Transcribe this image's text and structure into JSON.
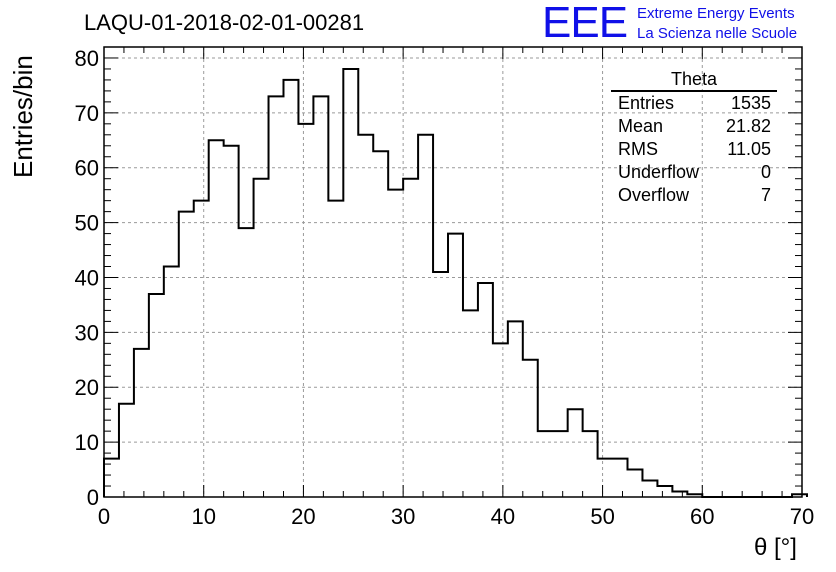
{
  "title": "LAQU-01-2018-02-01-00281",
  "logo": {
    "mark": "EEE",
    "line1": "Extreme Energy Events",
    "line2": "La Scienza nelle Scuole",
    "color": "#1010e8"
  },
  "stats": {
    "title": "Theta",
    "rows": [
      {
        "label": "Entries",
        "value": "1535"
      },
      {
        "label": "Mean",
        "value": "21.82"
      },
      {
        "label": "RMS",
        "value": "11.05"
      },
      {
        "label": "Underflow",
        "value": "0"
      },
      {
        "label": "Overflow",
        "value": "7"
      }
    ]
  },
  "chart_data": {
    "type": "histogram",
    "title": "LAQU-01-2018-02-01-00281",
    "xlabel": "θ [°]",
    "ylabel": "Entries/bin",
    "xlim": [
      0,
      70
    ],
    "ylim": [
      0,
      82
    ],
    "bin_width": 1.5,
    "bin_edges_start": 0,
    "values": [
      7,
      17,
      27,
      37,
      42,
      52,
      54,
      65,
      64,
      49,
      58,
      73,
      76,
      68,
      73,
      54,
      78,
      66,
      63,
      56,
      58,
      66,
      41,
      48,
      34,
      39,
      28,
      32,
      25,
      12,
      12,
      16,
      12,
      7,
      7,
      5,
      3,
      2,
      1,
      0.5,
      0,
      0,
      0,
      0,
      0,
      0,
      0.5
    ],
    "xticks": [
      0,
      10,
      20,
      30,
      40,
      50,
      60,
      70
    ],
    "yticks": [
      0,
      10,
      20,
      30,
      40,
      50,
      60,
      70,
      80
    ],
    "grid": true,
    "line_color": "#000000"
  }
}
